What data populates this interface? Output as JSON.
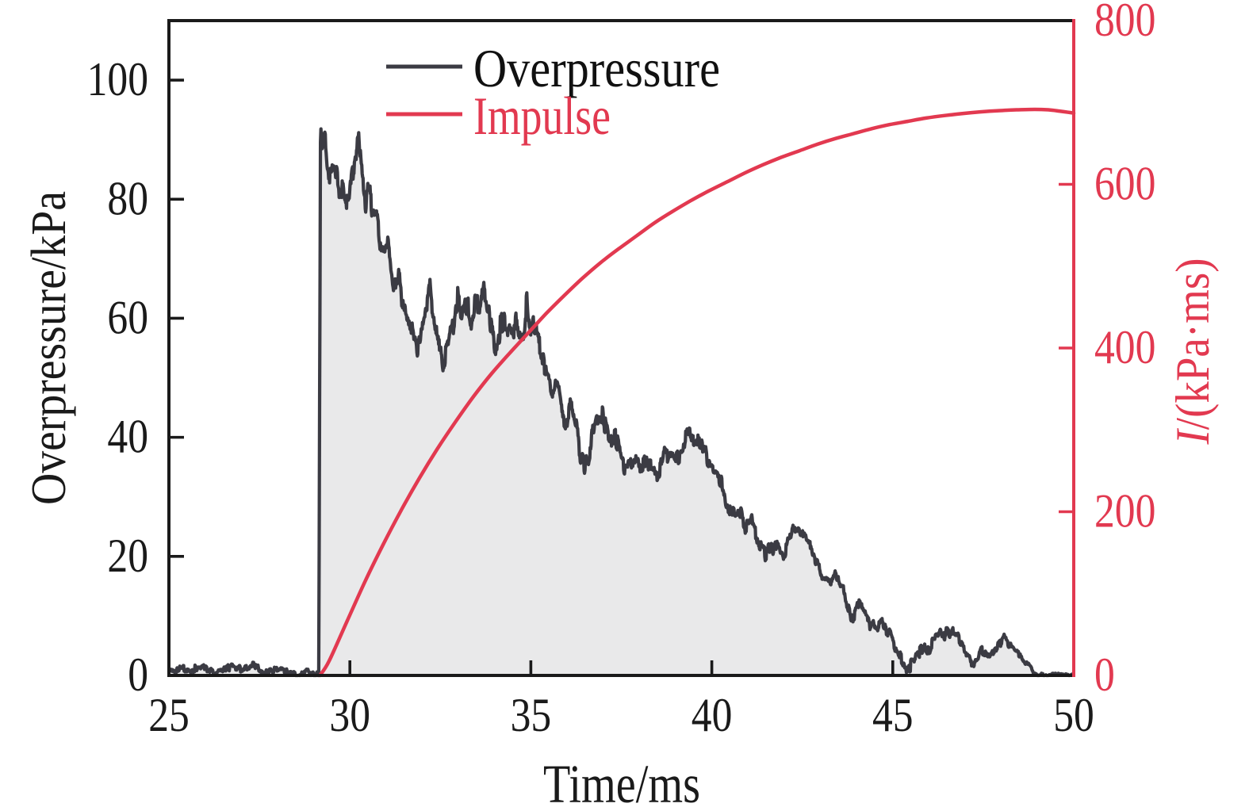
{
  "chart_data": {
    "type": "line",
    "xlabel": "Time/ms",
    "ylabel_left": "Overpressure/kPa",
    "ylabel_right": {
      "symbol": "I",
      "rest": "/(kPa·ms)"
    },
    "xlim": [
      25,
      50
    ],
    "ylim_left": [
      0,
      110
    ],
    "ylim_right": [
      0,
      800
    ],
    "x_ticks": [
      25,
      30,
      35,
      40,
      45,
      50
    ],
    "y_ticks_left": [
      0,
      20,
      40,
      60,
      80,
      100
    ],
    "y_ticks_right": [
      0,
      200,
      400,
      600,
      800
    ],
    "colors": {
      "overpressure_line": "#3b3b43",
      "overpressure_fill": "#e9e9ea",
      "impulse_line": "#e23950",
      "axis_black": "#1a1a1a",
      "axis_red": "#e23950"
    },
    "legend": [
      {
        "label": "Overpressure",
        "color": "#3b3b43",
        "text_color": "#111111"
      },
      {
        "label": "Impulse",
        "color": "#e23950",
        "text_color": "#e23950"
      }
    ],
    "series": [
      {
        "name": "Overpressure",
        "axis": "left",
        "noise": {
          "seed": 11,
          "w1": 0.22,
          "w2": 0.042,
          "a1": 0.8,
          "a2": 0.85,
          "a3": 0.3,
          "envelope": [
            [
              25,
              0.6
            ],
            [
              29.0,
              0.6
            ],
            [
              29.3,
              1.8
            ],
            [
              30.5,
              1.8
            ],
            [
              31.5,
              1.8
            ],
            [
              33,
              2.2
            ],
            [
              35.2,
              2.2
            ],
            [
              35.5,
              1.5
            ],
            [
              38,
              1.4
            ],
            [
              40,
              1.3
            ],
            [
              42,
              1.2
            ],
            [
              44,
              1.1
            ],
            [
              45.2,
              0.95
            ],
            [
              47,
              0.9
            ],
            [
              49.0,
              0.5
            ],
            [
              49.3,
              0.25
            ],
            [
              50,
              0.15
            ]
          ]
        },
        "points": [
          [
            25.0,
            0.7
          ],
          [
            25.3,
            1.0
          ],
          [
            25.6,
            0.8
          ],
          [
            25.9,
            1.3
          ],
          [
            26.2,
            0.7
          ],
          [
            26.5,
            1.0
          ],
          [
            26.8,
            1.5
          ],
          [
            27.0,
            0.9
          ],
          [
            27.3,
            1.6
          ],
          [
            27.6,
            0.8
          ],
          [
            27.9,
            0.6
          ],
          [
            28.2,
            1.0
          ],
          [
            28.5,
            0.4
          ],
          [
            28.8,
            0.7
          ],
          [
            29.0,
            0.4
          ],
          [
            29.1,
            0.4
          ],
          [
            29.14,
            0.4
          ],
          [
            29.19,
            93
          ],
          [
            29.24,
            88.5
          ],
          [
            29.3,
            90.5
          ],
          [
            29.37,
            85.5
          ],
          [
            29.47,
            83.5
          ],
          [
            29.57,
            86
          ],
          [
            29.72,
            82.5
          ],
          [
            29.87,
            80
          ],
          [
            29.94,
            78.5
          ],
          [
            29.99,
            81
          ],
          [
            30.08,
            83.5
          ],
          [
            30.18,
            88
          ],
          [
            30.25,
            90.5
          ],
          [
            30.33,
            84
          ],
          [
            30.43,
            78.5
          ],
          [
            30.53,
            81.5
          ],
          [
            30.63,
            76
          ],
          [
            30.73,
            77.5
          ],
          [
            30.88,
            70.5
          ],
          [
            30.98,
            69.5
          ],
          [
            31.03,
            73
          ],
          [
            31.13,
            68
          ],
          [
            31.23,
            65.5
          ],
          [
            31.33,
            68
          ],
          [
            31.43,
            63.5
          ],
          [
            31.58,
            61
          ],
          [
            31.73,
            58.5
          ],
          [
            31.88,
            55.5
          ],
          [
            32.03,
            58
          ],
          [
            32.13,
            60
          ],
          [
            32.21,
            63.5
          ],
          [
            32.33,
            58.5
          ],
          [
            32.48,
            55.5
          ],
          [
            32.58,
            53.8
          ],
          [
            32.73,
            57
          ],
          [
            32.88,
            58.5
          ],
          [
            32.98,
            62.5
          ],
          [
            33.08,
            59.5
          ],
          [
            33.18,
            63.5
          ],
          [
            33.28,
            61
          ],
          [
            33.38,
            59.5
          ],
          [
            33.48,
            62.5
          ],
          [
            33.58,
            61
          ],
          [
            33.68,
            63.8
          ],
          [
            33.78,
            61.5
          ],
          [
            33.88,
            59.5
          ],
          [
            33.98,
            57
          ],
          [
            34.08,
            56.2
          ],
          [
            34.18,
            58.5
          ],
          [
            34.28,
            57.5
          ],
          [
            34.38,
            56.5
          ],
          [
            34.48,
            57.5
          ],
          [
            34.58,
            58.5
          ],
          [
            34.68,
            57
          ],
          [
            34.78,
            59
          ],
          [
            34.88,
            64
          ],
          [
            34.98,
            58.5
          ],
          [
            35.08,
            59.8
          ],
          [
            35.18,
            58
          ],
          [
            35.28,
            54
          ],
          [
            35.38,
            50.5
          ],
          [
            35.48,
            49.5
          ],
          [
            35.58,
            46.5
          ],
          [
            35.68,
            48.5
          ],
          [
            35.78,
            47.5
          ],
          [
            35.88,
            43.5
          ],
          [
            35.98,
            42.5
          ],
          [
            36.08,
            45.5
          ],
          [
            36.18,
            43.5
          ],
          [
            36.28,
            40.5
          ],
          [
            36.38,
            36.5
          ],
          [
            36.48,
            34.8
          ],
          [
            36.58,
            37
          ],
          [
            36.68,
            40.5
          ],
          [
            36.78,
            42.8
          ],
          [
            36.88,
            43.5
          ],
          [
            36.98,
            44
          ],
          [
            37.08,
            42.5
          ],
          [
            37.18,
            38.8
          ],
          [
            37.28,
            40.5
          ],
          [
            37.38,
            39.5
          ],
          [
            37.48,
            36.5
          ],
          [
            37.58,
            34
          ],
          [
            37.68,
            33.5
          ],
          [
            37.78,
            34.5
          ],
          [
            37.88,
            36
          ],
          [
            37.98,
            34.8
          ],
          [
            38.08,
            35.5
          ],
          [
            38.18,
            36.5
          ],
          [
            38.28,
            35
          ],
          [
            38.38,
            35.8
          ],
          [
            38.48,
            34
          ],
          [
            38.58,
            36
          ],
          [
            38.68,
            38.8
          ],
          [
            38.78,
            36.2
          ],
          [
            38.88,
            37.5
          ],
          [
            38.98,
            36.8
          ],
          [
            39.08,
            36.2
          ],
          [
            39.18,
            37.2
          ],
          [
            39.28,
            39.8
          ],
          [
            39.38,
            40.8
          ],
          [
            39.48,
            39.8
          ],
          [
            39.58,
            40.5
          ],
          [
            39.68,
            38.5
          ],
          [
            39.78,
            38.8
          ],
          [
            39.88,
            36.8
          ],
          [
            39.98,
            36.2
          ],
          [
            40.08,
            33.5
          ],
          [
            40.18,
            32.8
          ],
          [
            40.28,
            32
          ],
          [
            40.38,
            30.5
          ],
          [
            40.48,
            29
          ],
          [
            40.58,
            28.2
          ],
          [
            40.68,
            27.8
          ],
          [
            40.78,
            27
          ],
          [
            40.88,
            25.2
          ],
          [
            40.98,
            24.5
          ],
          [
            41.08,
            26.5
          ],
          [
            41.18,
            25
          ],
          [
            41.28,
            23.5
          ],
          [
            41.38,
            21.8
          ],
          [
            41.48,
            20.8
          ],
          [
            41.58,
            21.5
          ],
          [
            41.68,
            21
          ],
          [
            41.78,
            22.5
          ],
          [
            41.88,
            20.8
          ],
          [
            41.98,
            19.5
          ],
          [
            42.08,
            21.5
          ],
          [
            42.18,
            22.8
          ],
          [
            42.28,
            24.2
          ],
          [
            42.38,
            24.8
          ],
          [
            42.48,
            23.5
          ],
          [
            42.58,
            23.8
          ],
          [
            42.68,
            22
          ],
          [
            42.78,
            20.5
          ],
          [
            42.88,
            19
          ],
          [
            42.98,
            18.2
          ],
          [
            43.08,
            16.5
          ],
          [
            43.18,
            15.8
          ],
          [
            43.28,
            16.2
          ],
          [
            43.38,
            17.5
          ],
          [
            43.48,
            16.8
          ],
          [
            43.58,
            14.8
          ],
          [
            43.68,
            13.5
          ],
          [
            43.78,
            11.8
          ],
          [
            43.88,
            10.5
          ],
          [
            43.98,
            11.8
          ],
          [
            44.08,
            12.5
          ],
          [
            44.18,
            10.8
          ],
          [
            44.28,
            9.8
          ],
          [
            44.38,
            8.8
          ],
          [
            44.48,
            9.2
          ],
          [
            44.58,
            8.5
          ],
          [
            44.68,
            9.5
          ],
          [
            44.78,
            8.2
          ],
          [
            44.88,
            7.8
          ],
          [
            44.98,
            6.5
          ],
          [
            45.08,
            4.5
          ],
          [
            45.18,
            3.2
          ],
          [
            45.28,
            1.8
          ],
          [
            45.38,
            1.2
          ],
          [
            45.48,
            1.5
          ],
          [
            45.58,
            2.5
          ],
          [
            45.68,
            3.5
          ],
          [
            45.78,
            4.5
          ],
          [
            45.88,
            5.2
          ],
          [
            45.98,
            4.2
          ],
          [
            46.08,
            5.5
          ],
          [
            46.18,
            5.8
          ],
          [
            46.28,
            6.8
          ],
          [
            46.38,
            6.2
          ],
          [
            46.48,
            7.0
          ],
          [
            46.58,
            6.2
          ],
          [
            46.68,
            6.8
          ],
          [
            46.78,
            5.8
          ],
          [
            46.88,
            5.2
          ],
          [
            46.98,
            4.2
          ],
          [
            47.08,
            2.8
          ],
          [
            47.18,
            1.8
          ],
          [
            47.28,
            2.2
          ],
          [
            47.38,
            3.2
          ],
          [
            47.48,
            4.2
          ],
          [
            47.58,
            3.2
          ],
          [
            47.68,
            2.9
          ],
          [
            47.78,
            4.0
          ],
          [
            47.88,
            5.2
          ],
          [
            47.98,
            5.6
          ],
          [
            48.08,
            6.3
          ],
          [
            48.18,
            5.4
          ],
          [
            48.28,
            4.6
          ],
          [
            48.38,
            3.8
          ],
          [
            48.48,
            3.2
          ],
          [
            48.58,
            2.4
          ],
          [
            48.68,
            1.6
          ],
          [
            48.78,
            1.4
          ],
          [
            48.88,
            0.9
          ],
          [
            48.98,
            0.6
          ],
          [
            49.08,
            0.3
          ],
          [
            49.2,
            0.2
          ],
          [
            49.5,
            0.15
          ],
          [
            50.0,
            0.1
          ]
        ]
      },
      {
        "name": "Impulse",
        "axis": "right",
        "points": [
          [
            29.17,
            0
          ],
          [
            29.42,
            17
          ],
          [
            29.92,
            66
          ],
          [
            30.42,
            115
          ],
          [
            30.92,
            160
          ],
          [
            31.42,
            202
          ],
          [
            31.92,
            241
          ],
          [
            32.42,
            277
          ],
          [
            32.92,
            310
          ],
          [
            33.42,
            341
          ],
          [
            33.92,
            369
          ],
          [
            34.42,
            394
          ],
          [
            34.92,
            418
          ],
          [
            35.42,
            442
          ],
          [
            35.92,
            464
          ],
          [
            36.42,
            485
          ],
          [
            36.92,
            504
          ],
          [
            37.42,
            521
          ],
          [
            37.92,
            537
          ],
          [
            38.42,
            553
          ],
          [
            38.92,
            567
          ],
          [
            39.42,
            580
          ],
          [
            39.92,
            592
          ],
          [
            40.42,
            603
          ],
          [
            40.92,
            614
          ],
          [
            41.42,
            624
          ],
          [
            41.92,
            633
          ],
          [
            42.42,
            641
          ],
          [
            42.92,
            649
          ],
          [
            43.42,
            656
          ],
          [
            43.92,
            662
          ],
          [
            44.42,
            668
          ],
          [
            44.92,
            673
          ],
          [
            45.42,
            677
          ],
          [
            45.92,
            681
          ],
          [
            46.42,
            684
          ],
          [
            46.92,
            686.5
          ],
          [
            47.42,
            688.5
          ],
          [
            47.92,
            690
          ],
          [
            48.42,
            691
          ],
          [
            48.92,
            691.5
          ],
          [
            49.3,
            691
          ],
          [
            49.6,
            689.5
          ],
          [
            50.0,
            687
          ]
        ]
      }
    ]
  }
}
